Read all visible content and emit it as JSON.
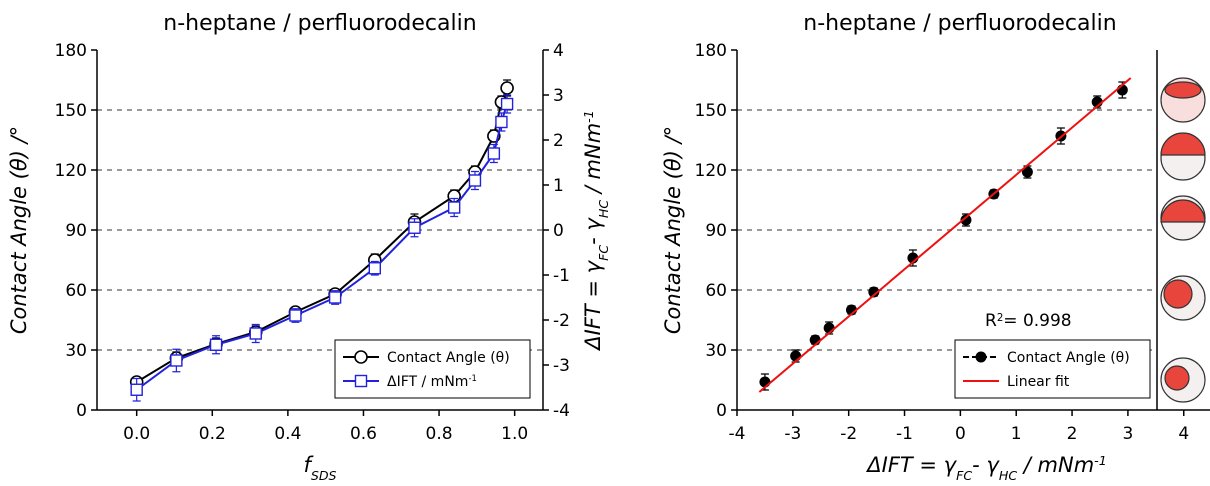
{
  "chart_data": [
    {
      "type": "line",
      "title": "n-heptane / perfluorodecalin",
      "x": [
        0.0,
        0.105,
        0.21,
        0.315,
        0.42,
        0.525,
        0.63,
        0.735,
        0.84,
        0.895,
        0.945,
        0.965,
        0.98
      ],
      "series": [
        {
          "name": "Contact Angle (θ)",
          "color": "#000000",
          "marker": "open-circle",
          "line": true,
          "values": [
            14,
            26,
            33,
            39,
            49,
            58,
            75,
            94,
            107,
            119,
            137,
            154,
            161
          ],
          "errors": [
            2,
            3,
            3,
            3,
            2,
            2,
            3,
            4,
            3,
            3,
            3,
            3,
            4
          ]
        },
        {
          "name": [
            {
              "text": "ΔIFT / mNm"
            },
            {
              "sup": "-1"
            }
          ],
          "color": "#2222dd",
          "marker": "open-square",
          "line": true,
          "axis": "y2",
          "values": [
            -3.55,
            -2.9,
            -2.55,
            -2.3,
            -1.9,
            -1.5,
            -0.85,
            0.05,
            0.5,
            1.1,
            1.7,
            2.4,
            2.8
          ],
          "errors": [
            0.25,
            0.25,
            0.2,
            0.2,
            0.15,
            0.15,
            0.15,
            0.2,
            0.2,
            0.2,
            0.2,
            0.2,
            0.2
          ]
        }
      ],
      "xlim": [
        -0.105,
        1.075
      ],
      "xticks": [
        {
          "value": 0,
          "label": "0.0"
        },
        0.2,
        0.4,
        0.6,
        0.8,
        {
          "value": 1,
          "label": "1.0"
        }
      ],
      "ylim": [
        0,
        180
      ],
      "yticks": [
        0,
        30,
        60,
        90,
        120,
        150,
        180
      ],
      "y2lim": [
        -4,
        4
      ],
      "y2ticks": [
        -4,
        -3,
        -2,
        -1,
        0,
        1,
        2,
        3,
        4
      ],
      "x_label": [
        {
          "text": "f"
        },
        {
          "sub": "SDS"
        }
      ],
      "y_label": [
        {
          "text": "Contact Angle (θ) /°"
        }
      ],
      "y2_label": [
        {
          "text": "ΔIFT = γ"
        },
        {
          "sub": "FC"
        },
        {
          "text": "- γ"
        },
        {
          "sub": "HC"
        },
        {
          "text": " / mNm"
        },
        {
          "sup": "-1"
        }
      ],
      "grid": true,
      "legend": "lower right"
    },
    {
      "type": "line",
      "title": "n-heptane / perfluorodecalin",
      "series": [
        {
          "name": "Contact Angle (θ)",
          "color": "#000000",
          "marker": "filled-circle",
          "line": false,
          "x": [
            -3.5,
            -2.95,
            -2.6,
            -2.35,
            -1.95,
            -1.55,
            -0.85,
            0.1,
            0.6,
            1.2,
            1.8,
            2.45,
            2.9
          ],
          "values": [
            14,
            27,
            35,
            41,
            50,
            59,
            76,
            95,
            108,
            119,
            137,
            154,
            160
          ],
          "errors": [
            4,
            3,
            2,
            3,
            2,
            2,
            4,
            3,
            2,
            3,
            4,
            3,
            4
          ]
        },
        {
          "name": "Linear fit",
          "color": "#ee1111",
          "marker": "none",
          "line": true,
          "x": [
            -3.6,
            3.05
          ],
          "values": [
            9,
            166
          ]
        }
      ],
      "xlim": [
        -4,
        4.47
      ],
      "xticks": [
        -4,
        -3,
        -2,
        -1,
        0,
        1,
        2,
        3,
        4
      ],
      "ylim": [
        0,
        180
      ],
      "yticks": [
        0,
        30,
        60,
        90,
        120,
        150,
        180
      ],
      "x_label": [
        {
          "text": "ΔIFT = γ"
        },
        {
          "sub": "FC"
        },
        {
          "text": "- γ"
        },
        {
          "sub": "HC"
        },
        {
          "text": " / mNm"
        },
        {
          "sup": "-1"
        }
      ],
      "y_label": [
        {
          "text": "Contact Angle (θ) /°"
        }
      ],
      "annotation": [
        {
          "text": "R"
        },
        {
          "sup": "2"
        },
        {
          "text": "= 0.998"
        }
      ],
      "grid": true,
      "legend": "lower right"
    }
  ]
}
